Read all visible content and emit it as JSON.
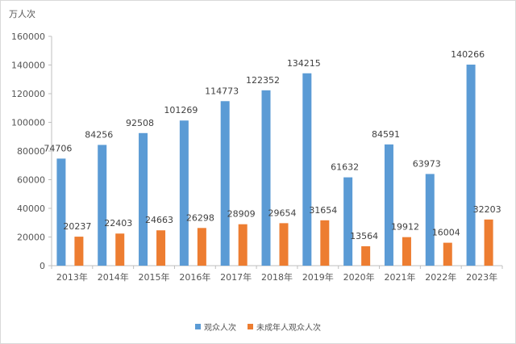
{
  "chart_data": {
    "type": "bar",
    "title": "",
    "unit_label": "万人次",
    "xlabel": "",
    "ylabel": "万人次",
    "ylim": [
      0,
      160000
    ],
    "yticks": [
      0,
      20000,
      40000,
      60000,
      80000,
      100000,
      120000,
      140000,
      160000
    ],
    "grid": false,
    "legend_position": "bottom",
    "categories": [
      "2013年",
      "2014年",
      "2015年",
      "2016年",
      "2017年",
      "2018年",
      "2019年",
      "2020年",
      "2021年",
      "2022年",
      "2023年"
    ],
    "series": [
      {
        "name": "观众人次",
        "color": "#5b9bd5",
        "values": [
          74706,
          84256,
          92508,
          101269,
          114773,
          122352,
          134215,
          61632,
          84591,
          63973,
          140266
        ]
      },
      {
        "name": "未成年人观众人次",
        "color": "#ed7d31",
        "values": [
          20237,
          22403,
          24663,
          26298,
          28909,
          29654,
          31654,
          13564,
          19912,
          16004,
          32203
        ]
      }
    ]
  }
}
